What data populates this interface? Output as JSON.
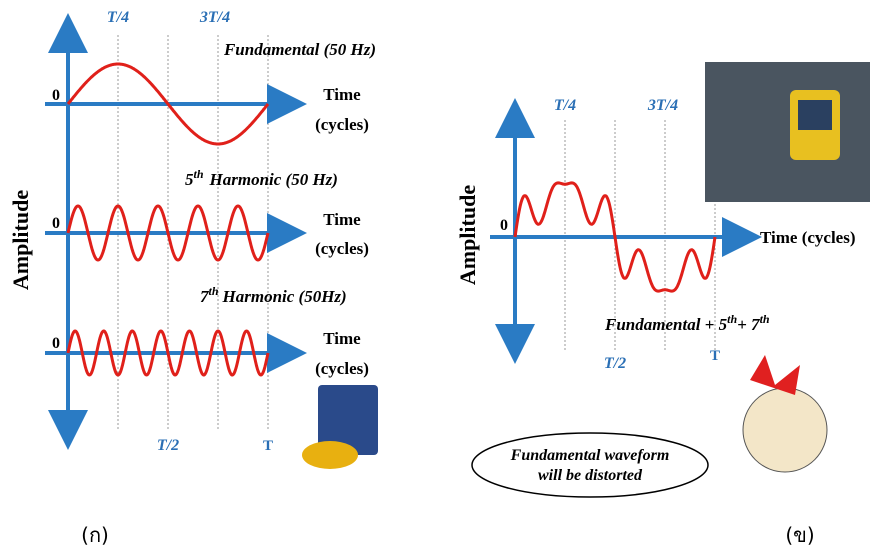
{
  "left": {
    "t4": "T/4",
    "t34": "3T/4",
    "fundamental": "Fundamental (50 Hz)",
    "zero": [
      "0",
      "0",
      "0"
    ],
    "time": [
      "Time",
      "Time",
      "Time"
    ],
    "cycles": [
      "(cycles)",
      "(cycles)",
      "(cycles)"
    ],
    "h5": {
      "n": "5",
      "sup": "th",
      "rest": "Harmonic (50 Hz)"
    },
    "h7": {
      "n": "7",
      "sup": "th",
      "rest": "Harmonic (50Hz)"
    },
    "t2": "T/2",
    "t": "T",
    "amplitude": "Amplitude",
    "caption": "(ก)"
  },
  "right": {
    "t4": "T/4",
    "t34": "3T/4",
    "amplitude": "Amplitude",
    "zero": "0",
    "time": "Time (cycles)",
    "sum": {
      "a": "Fundamental + 5",
      "a_sup": "th",
      "b": "+ 7",
      "b_sup": "th"
    },
    "t2": "T/2",
    "t": "T",
    "bubble": [
      "Fundamental waveform",
      "will be distorted"
    ],
    "caption": "(ข)"
  }
}
